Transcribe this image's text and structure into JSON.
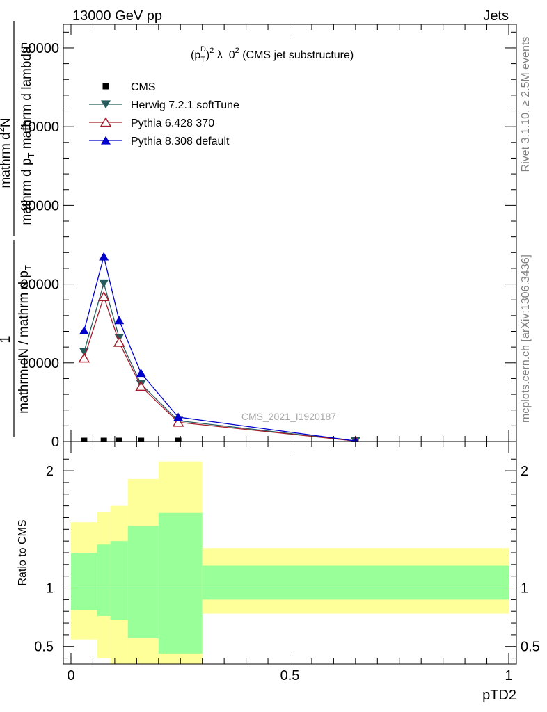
{
  "header": {
    "left": "13000 GeV pp",
    "right": "Jets"
  },
  "side": {
    "rivet": "Rivet 3.1.10, ≥ 2.5M events",
    "source": "mcplots.cern.ch [arXiv:1306.3436]"
  },
  "chart_data": [
    {
      "type": "line",
      "panel": "main",
      "title_parts": {
        "open": "(p",
        "sub": "T",
        "sup": "D",
        "close": ")",
        "sq": "2",
        "mid": " λ_0",
        "rest": " (CMS jet substructure)"
      },
      "ylabel": {
        "one": "1",
        "den1": "mathrm dN / mathrm d p",
        "den1_sub": "T",
        "den2": "mathrm d p",
        "den2_sub": "T",
        "den2_rest": " mathrm d lambda",
        "numerator": "mathrm d",
        "numerator_sup": "2",
        "numerator_rest": "N"
      },
      "ylim": [
        0,
        53000
      ],
      "xlim": [
        -0.0175,
        1.0175
      ],
      "yticks": [
        {
          "value": 0,
          "label": "0"
        },
        {
          "value": 10000,
          "label": "10000"
        },
        {
          "value": 20000,
          "label": "20000"
        },
        {
          "value": 30000,
          "label": "30000"
        },
        {
          "value": 40000,
          "label": "40000"
        },
        {
          "value": 50000,
          "label": "50000"
        }
      ],
      "watermark": "CMS_2021_I1920187",
      "x": [
        0.03,
        0.075,
        0.11,
        0.16,
        0.245,
        0.65
      ],
      "series": [
        {
          "name": "CMS",
          "color": "#000000",
          "marker": "square",
          "values": [
            0,
            0,
            0,
            0,
            0,
            0
          ]
        },
        {
          "name": "Herwig 7.2.1 softTune",
          "color": "#275c5c",
          "marker": "triangle-down",
          "values": [
            11400,
            20100,
            13200,
            7300,
            2650,
            60
          ]
        },
        {
          "name": "Pythia 6.428 370",
          "color": "#a51d2d",
          "marker": "triangle-up-open",
          "values": [
            10600,
            18400,
            12600,
            7000,
            2450,
            60
          ]
        },
        {
          "name": "Pythia 8.308 default",
          "color": "#0000cc",
          "marker": "triangle-up",
          "values": [
            14100,
            23500,
            15400,
            8700,
            3100,
            70
          ]
        }
      ]
    },
    {
      "type": "area",
      "panel": "ratio",
      "ylabel": "Ratio to CMS",
      "xlabel": "pTD2",
      "ylim": [
        0.35,
        2.25
      ],
      "xlim": [
        -0.0175,
        1.0175
      ],
      "yticks": [
        {
          "value": 0.5,
          "label": "0.5"
        },
        {
          "value": 1,
          "label": "1"
        },
        {
          "value": 2,
          "label": "2"
        }
      ],
      "xticks": [
        {
          "value": 0,
          "label": "0"
        },
        {
          "value": 0.5,
          "label": "0.5"
        },
        {
          "value": 1,
          "label": "1"
        }
      ],
      "bin_edges": [
        0,
        0.06,
        0.09,
        0.13,
        0.2,
        0.3,
        1.0
      ],
      "band_total_lo": [
        0.56,
        0.4,
        0.33,
        0.33,
        0.33,
        0.78
      ],
      "band_total_hi": [
        1.56,
        1.65,
        1.7,
        1.93,
        2.08,
        1.34
      ],
      "band_stat_lo": [
        0.81,
        0.76,
        0.73,
        0.57,
        0.44,
        0.9
      ],
      "band_stat_hi": [
        1.3,
        1.37,
        1.4,
        1.53,
        1.64,
        1.19
      ],
      "colors": {
        "total": "#ffff99",
        "stat": "#99ff99"
      },
      "reference": 1
    }
  ]
}
